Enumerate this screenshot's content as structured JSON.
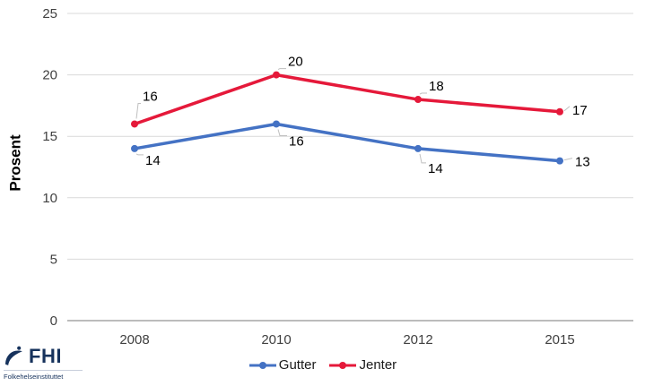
{
  "chart_data": {
    "type": "line",
    "categories": [
      "2008",
      "2010",
      "2012",
      "2015"
    ],
    "series": [
      {
        "name": "Gutter",
        "color": "#4472C4",
        "values": [
          14,
          16,
          14,
          13
        ]
      },
      {
        "name": "Jenter",
        "color": "#E5193A",
        "values": [
          16,
          20,
          18,
          17
        ]
      }
    ],
    "title": "",
    "xlabel": "",
    "ylabel": "Prosent",
    "ylim": [
      0,
      25
    ],
    "yticks": [
      0,
      5,
      10,
      15,
      20,
      25
    ],
    "grid": true,
    "data_labels": true,
    "legend_position": "bottom-center"
  },
  "logo": {
    "acronym": "FHI",
    "name": "Folkehelseinstituttet"
  },
  "colors": {
    "background": "#FFFFFF",
    "gridline": "#D9D9D9",
    "axis_line": "#A6A6A6",
    "tick_text": "#404040",
    "data_label_text": "#000000",
    "leader_line": "#BFBFBF",
    "logo_navy": "#16325C"
  }
}
